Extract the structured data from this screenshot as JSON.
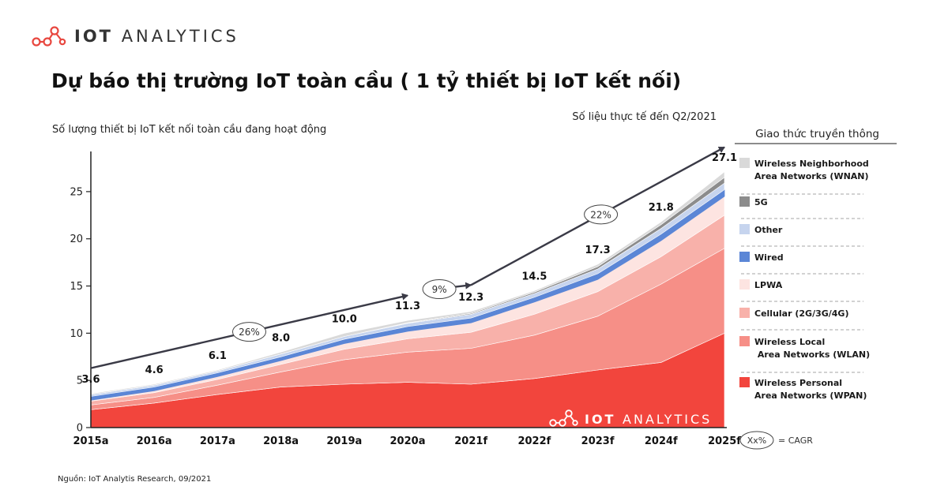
{
  "header": {
    "brand_bold": "IOT",
    "brand_light": "ANALYTICS",
    "title": "Dự báo thị trường IoT toàn cầu ( 1 tỷ thiết bị IoT kết nối)",
    "source": "Nguồn: IoT Analytis Research, 09/2021"
  },
  "colors": {
    "WPAN": "#f2453d",
    "WLAN": "#f68f87",
    "Cellular": "#f8b1aa",
    "LPWA": "#fde4e1",
    "Wired": "#5b86d6",
    "Other": "#c6d4ee",
    "5G": "#8c8c8c",
    "WNAN": "#d9d9d9",
    "trend": "#3a3a46"
  },
  "chart_data": {
    "type": "area",
    "subtitle": "Số lượng thiết bị IoT kết nối toàn cầu đang hoạt động",
    "note": "Số liệu thực tế đến Q2/2021",
    "legend_title": "Giao thức truyền thông",
    "categories": [
      "2015a",
      "2016a",
      "2017a",
      "2018a",
      "2019a",
      "2020a",
      "2021f",
      "2022f",
      "2023f",
      "2024f",
      "2025f"
    ],
    "ylim": [
      0,
      28
    ],
    "yticks": [
      0,
      5,
      10,
      15,
      20,
      25
    ],
    "series": [
      {
        "key": "WPAN",
        "name": "Wireless Personal Area Networks (WPAN)",
        "legend_lines": [
          "Wireless Personal",
          "Area Networks (WPAN)"
        ],
        "values": [
          1.9,
          2.6,
          3.5,
          4.3,
          4.6,
          4.8,
          4.6,
          5.2,
          6.1,
          6.9,
          10.0
        ]
      },
      {
        "key": "WLAN",
        "name": "Wireless Local Area Networks (WLAN)",
        "legend_lines": [
          "Wireless Local",
          " Area Networks (WLAN)"
        ],
        "values": [
          0.5,
          0.6,
          1.0,
          1.6,
          2.6,
          3.2,
          3.8,
          4.6,
          5.7,
          8.3,
          9.0
        ]
      },
      {
        "key": "Cellular",
        "name": "Cellular (2G/3G/4G)",
        "legend_lines": [
          "Cellular (2G/3G/4G)"
        ],
        "values": [
          0.4,
          0.5,
          0.6,
          0.8,
          1.1,
          1.4,
          1.7,
          2.2,
          2.6,
          2.9,
          3.5
        ]
      },
      {
        "key": "LPWA",
        "name": "LPWA",
        "legend_lines": [
          "LPWA"
        ],
        "values": [
          0.1,
          0.2,
          0.3,
          0.4,
          0.6,
          0.8,
          1.0,
          1.3,
          1.3,
          1.7,
          2.0
        ]
      },
      {
        "key": "Wired",
        "name": "Wired",
        "legend_lines": [
          "Wired"
        ],
        "values": [
          0.4,
          0.4,
          0.4,
          0.4,
          0.45,
          0.5,
          0.5,
          0.5,
          0.6,
          0.7,
          0.7
        ]
      },
      {
        "key": "Other",
        "name": "Other",
        "legend_lines": [
          "Other"
        ],
        "values": [
          0.2,
          0.2,
          0.2,
          0.3,
          0.3,
          0.35,
          0.4,
          0.4,
          0.5,
          0.6,
          0.7
        ]
      },
      {
        "key": "5G",
        "name": "5G",
        "legend_lines": [
          "5G"
        ],
        "values": [
          0,
          0,
          0,
          0,
          0,
          0.05,
          0.1,
          0.15,
          0.25,
          0.4,
          0.6
        ]
      },
      {
        "key": "WNAN",
        "name": "Wireless Neighborhood Area Networks (WNAN)",
        "legend_lines": [
          "Wireless Neighborhood",
          "Area Networks (WNAN)"
        ],
        "values": [
          0.1,
          0.1,
          0.1,
          0.2,
          0.35,
          0.25,
          0.2,
          0.15,
          0.25,
          0.3,
          0.6
        ]
      }
    ],
    "legend_order": [
      "WNAN",
      "5G",
      "Other",
      "Wired",
      "LPWA",
      "Cellular",
      "WLAN",
      "WPAN"
    ],
    "total_labels": [
      "3.6",
      "4.6",
      "6.1",
      "8.0",
      "10.0",
      "11.3",
      "12.3",
      "14.5",
      "17.3",
      "21.8",
      "27.1"
    ],
    "cagr": [
      {
        "label": "26%",
        "at_index": 2.5
      },
      {
        "label": "9%",
        "at_index": 5.5
      },
      {
        "label": "22%",
        "at_index": 8.05
      }
    ],
    "trend_points": [
      [
        0,
        6.3
      ],
      [
        5,
        14.0
      ],
      [
        5.6,
        14.8
      ],
      [
        6,
        15.1
      ],
      [
        10,
        29.7
      ]
    ],
    "cagr_legend_label": "Xx%",
    "cagr_legend_text": "= CAGR",
    "watermark_bold": "IOT",
    "watermark_light": "ANALYTICS"
  }
}
